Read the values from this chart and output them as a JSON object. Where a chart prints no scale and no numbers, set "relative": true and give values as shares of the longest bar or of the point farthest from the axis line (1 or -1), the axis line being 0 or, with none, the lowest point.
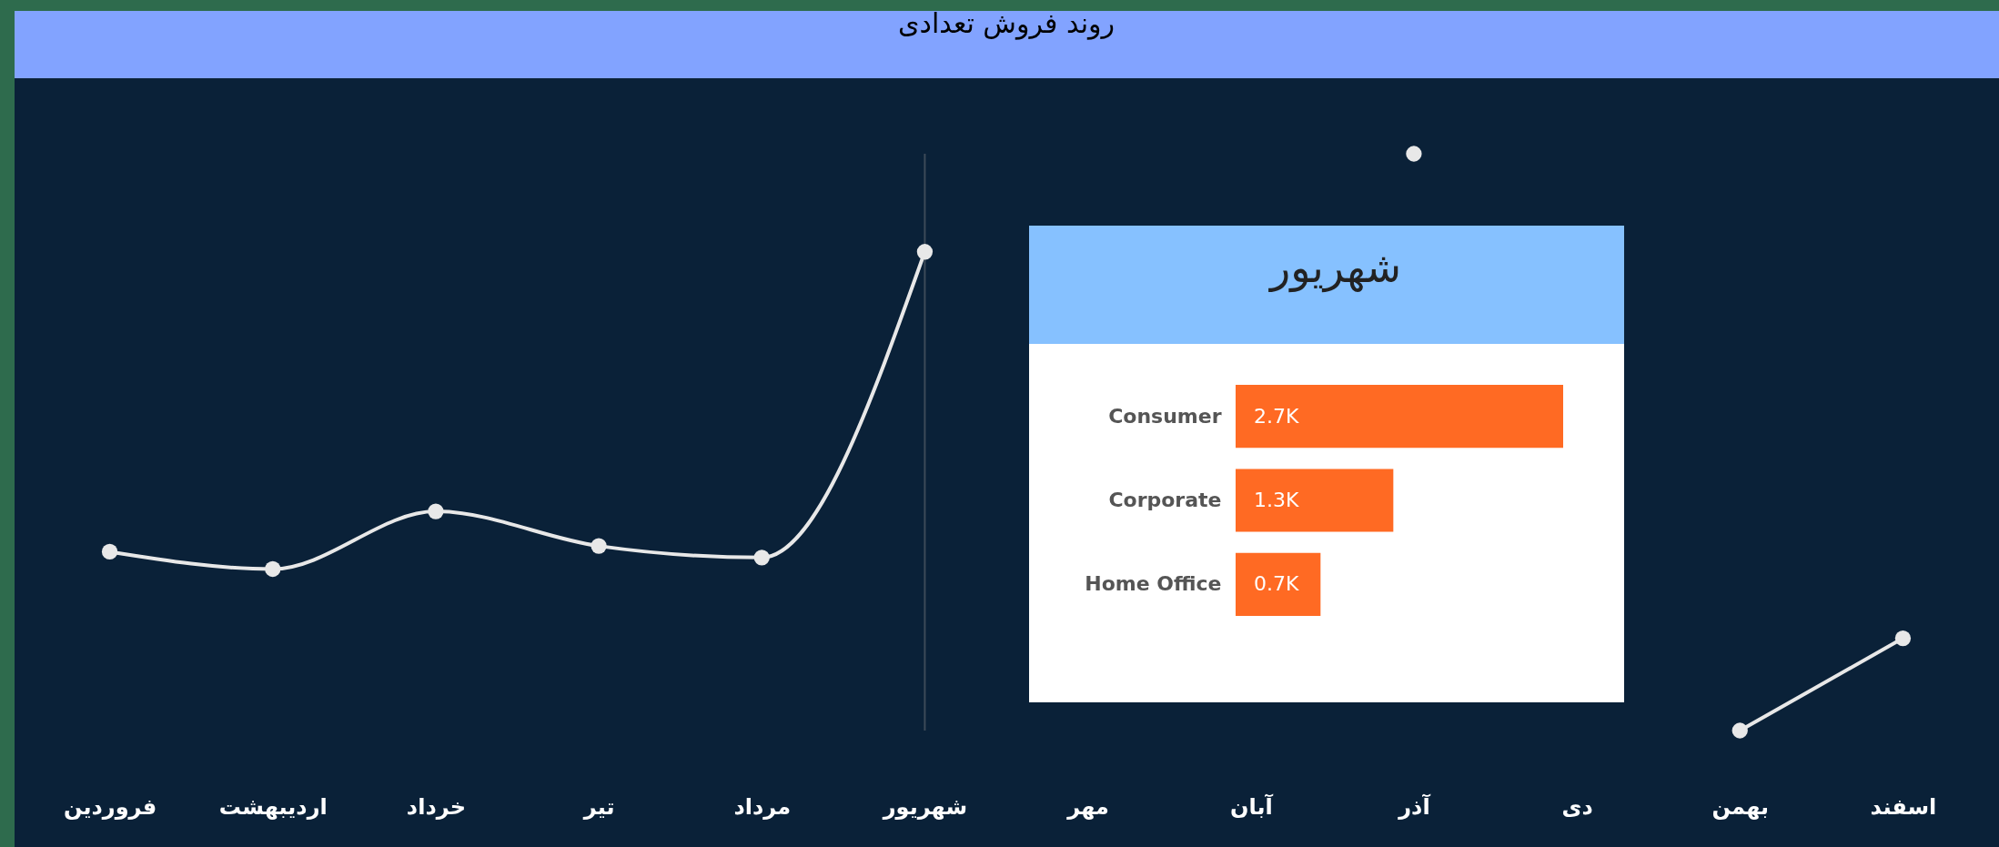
{
  "chart_data": [
    {
      "type": "line",
      "title": "روند فروش تعدادی",
      "categories": [
        "فروردین",
        "اردیبهشت",
        "خرداد",
        "تیر",
        "مرداد",
        "شهریور",
        "مهر",
        "آبان",
        "آذر",
        "دی",
        "بهمن",
        "اسفند"
      ],
      "series": [
        {
          "color": "#e8e8e8",
          "values": [
            0.31,
            0.28,
            0.38,
            0.32,
            0.3,
            0.83,
            null,
            null,
            1,
            null,
            0,
            0.16
          ]
        }
      ],
      "relative": true,
      "marker": "circle",
      "grid": false,
      "legend": false,
      "ref_lines": [
        {
          "axis": "x",
          "value": "شهریور",
          "color": "#3c4a58"
        }
      ]
    },
    {
      "type": "bar",
      "title": "شهریور",
      "orientation": "horizontal",
      "categories": [
        "Consumer",
        "Corporate",
        "Home Office"
      ],
      "values": [
        2700,
        1300,
        700
      ],
      "color": "#ff6a23",
      "value_labels": [
        "2.7K",
        "1.3K",
        "0.7K"
      ]
    }
  ]
}
